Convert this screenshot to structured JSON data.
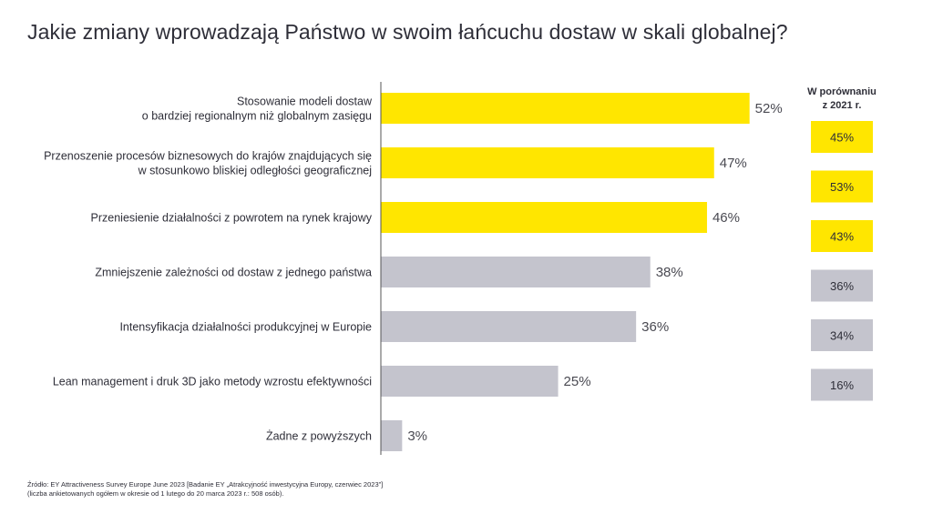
{
  "title": "Jakie zmiany wprowadzają Państwo w swoim łańcuchu dostaw w skali globalnej?",
  "colors": {
    "highlight": "#FFE600",
    "neutral": "#C4C4CD",
    "axis": "#555555"
  },
  "chart_data": {
    "type": "bar",
    "orientation": "horizontal",
    "title": "Jakie zmiany wprowadzają Państwo w swoim łańcuchu dostaw w skali globalnej?",
    "categories": [
      [
        "Stosowanie modeli dostaw",
        "o bardziej regionalnym niż globalnym zasięgu"
      ],
      [
        "Przenoszenie procesów biznesowych do krajów znajdujących się",
        "w stosunkowo bliskiej odległości geograficznej"
      ],
      [
        "Przeniesienie działalności  z powrotem na rynek krajowy"
      ],
      [
        "Zmniejszenie  zależności od dostaw z jednego państwa"
      ],
      [
        "Intensyfikacja działalności  produkcyjnej w Europie"
      ],
      [
        "Lean management  i druk 3D jako metody wzrostu efektywności"
      ],
      [
        "Żadne z powyższych"
      ]
    ],
    "values": [
      52,
      47,
      46,
      38,
      36,
      25,
      3
    ],
    "value_labels": [
      "52%",
      "47%",
      "46%",
      "38%",
      "36%",
      "25%",
      "3%"
    ],
    "bar_colors": [
      "highlight",
      "highlight",
      "highlight",
      "neutral",
      "neutral",
      "neutral",
      "neutral"
    ],
    "xlim": [
      0,
      55
    ],
    "comparison": {
      "header": [
        "W porównaniu",
        "z 2021 r."
      ],
      "values": [
        45,
        53,
        43,
        36,
        34,
        16
      ],
      "labels": [
        "45%",
        "53%",
        "43%",
        "36%",
        "34%",
        "16%"
      ],
      "colors": [
        "highlight",
        "highlight",
        "highlight",
        "neutral",
        "neutral",
        "neutral"
      ]
    }
  },
  "source": [
    "Źródło: EY Attractiveness Survey Europe June 2023 [Badanie EY „Atrakcyjność inwestycyjna Europy, czerwiec 2023”]",
    "(liczba ankietowanych ogółem w okresie od 1 lutego do 20 marca 2023 r.: 508 osób)."
  ]
}
